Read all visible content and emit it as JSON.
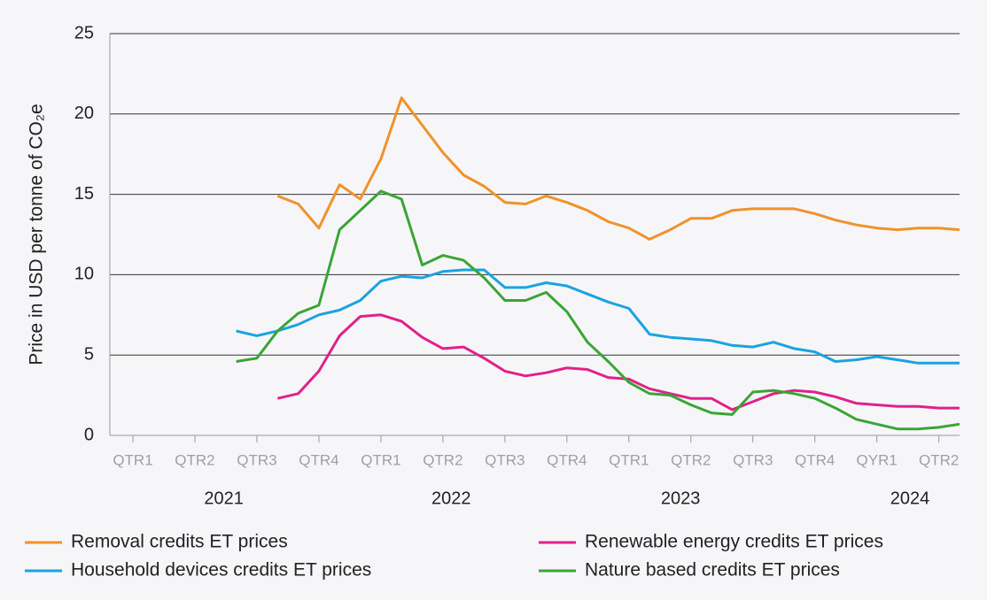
{
  "chart_data": {
    "type": "line",
    "y_label": "Price in USD per tonne of CO₂e",
    "categories": [
      "QTR1",
      null,
      null,
      "QTR2",
      null,
      null,
      "QTR3",
      null,
      null,
      "QTR4",
      null,
      null,
      "QTR1",
      null,
      null,
      "QTR2",
      null,
      null,
      "QTR3",
      null,
      null,
      "QTR4",
      null,
      null,
      "QTR1",
      null,
      null,
      "QTR2",
      null,
      null,
      "QTR3",
      null,
      null,
      "QTR4",
      null,
      null,
      "QYR1",
      null,
      null,
      "QTR2",
      null
    ],
    "x_groups": [
      "2021",
      "2022",
      "2023",
      "2024"
    ],
    "ylim": [
      0,
      25
    ],
    "yticks": [
      0,
      5,
      10,
      15,
      20,
      25
    ],
    "grid": true,
    "series": [
      {
        "name": "Removal credits ET prices",
        "color": "#f0922b",
        "values": [
          null,
          null,
          null,
          null,
          null,
          null,
          null,
          14.9,
          14.4,
          12.9,
          15.6,
          14.7,
          17.2,
          21.0,
          19.3,
          17.6,
          16.2,
          15.5,
          14.5,
          14.4,
          14.9,
          14.5,
          14.0,
          13.3,
          12.9,
          12.2,
          12.8,
          13.5,
          13.5,
          14.0,
          14.1,
          14.1,
          14.1,
          13.8,
          13.4,
          13.1,
          12.9,
          12.8,
          12.9,
          12.9,
          12.8
        ]
      },
      {
        "name": "Renewable energy credits ET prices",
        "color": "#e0218a",
        "values": [
          null,
          null,
          null,
          null,
          null,
          null,
          null,
          2.3,
          2.6,
          4.0,
          6.2,
          7.4,
          7.5,
          7.1,
          6.1,
          5.4,
          5.5,
          4.8,
          4.0,
          3.7,
          3.9,
          4.2,
          4.1,
          3.6,
          3.5,
          2.9,
          2.6,
          2.3,
          2.3,
          1.6,
          2.1,
          2.6,
          2.8,
          2.7,
          2.4,
          2.0,
          1.9,
          1.8,
          1.8,
          1.7,
          1.7
        ]
      },
      {
        "name": "Household devices credits ET prices",
        "color": "#1aa3e0",
        "values": [
          null,
          null,
          null,
          null,
          null,
          6.5,
          6.2,
          6.5,
          6.9,
          7.5,
          7.8,
          8.4,
          9.6,
          9.9,
          9.8,
          10.2,
          10.3,
          10.3,
          9.2,
          9.2,
          9.5,
          9.3,
          8.8,
          8.3,
          7.9,
          6.3,
          6.1,
          6.0,
          5.9,
          5.6,
          5.5,
          5.8,
          5.4,
          5.2,
          4.6,
          4.7,
          4.9,
          4.7,
          4.5,
          4.5,
          4.5
        ]
      },
      {
        "name": "Nature based credits ET prices",
        "color": "#3aa535",
        "values": [
          null,
          null,
          null,
          null,
          null,
          4.6,
          4.8,
          6.5,
          7.6,
          8.1,
          12.8,
          14.0,
          15.2,
          14.7,
          10.6,
          11.2,
          10.9,
          9.8,
          8.4,
          8.4,
          8.9,
          7.7,
          5.8,
          4.6,
          3.3,
          2.6,
          2.5,
          1.9,
          1.4,
          1.3,
          2.7,
          2.8,
          2.6,
          2.3,
          1.7,
          1.0,
          0.7,
          0.4,
          0.4,
          0.5,
          0.7
        ]
      }
    ]
  }
}
